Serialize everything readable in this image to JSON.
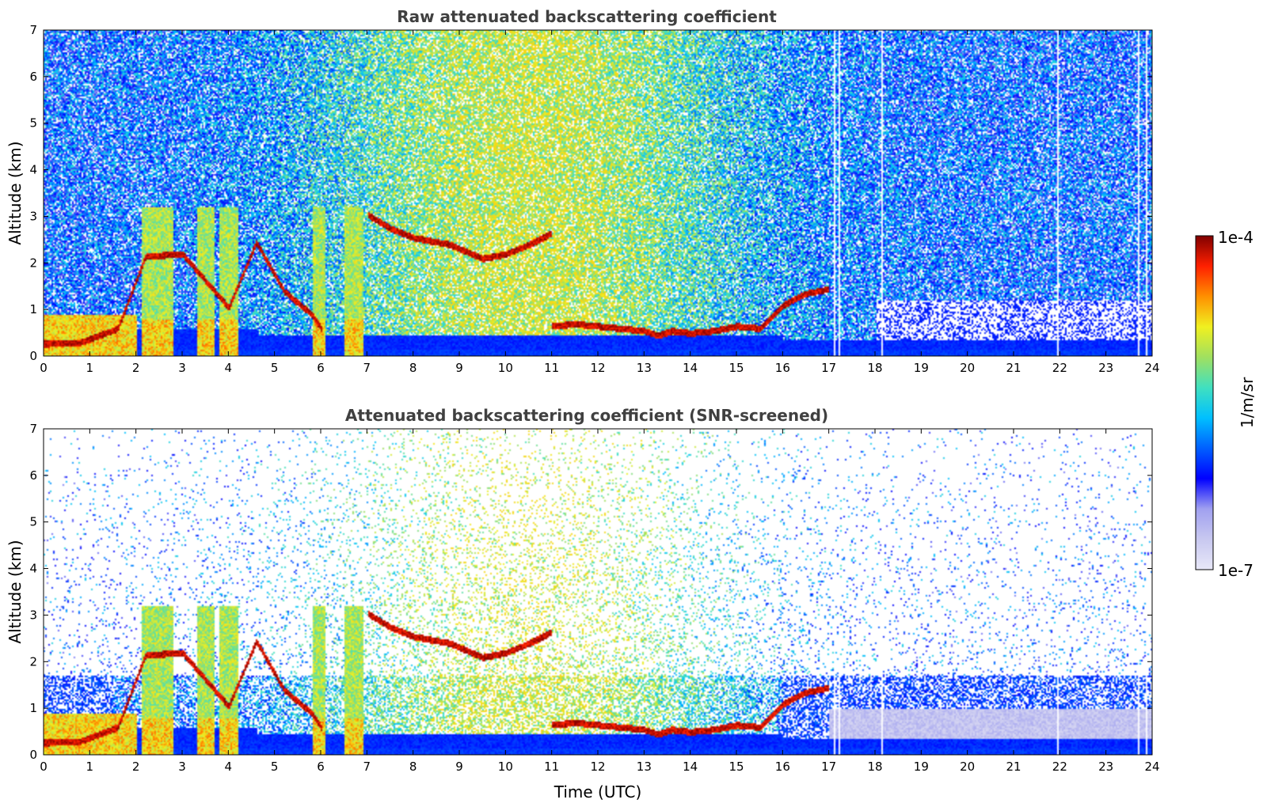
{
  "chart_data": [
    {
      "type": "heatmap",
      "title": "Raw attenuated backscattering coefficient",
      "xlabel": "",
      "ylabel": "Altitude (km)",
      "xlim": [
        0,
        24
      ],
      "ylim": [
        0,
        7
      ],
      "xticks": [
        "0",
        "1",
        "2",
        "3",
        "4",
        "5",
        "6",
        "7",
        "8",
        "9",
        "10",
        "11",
        "12",
        "13",
        "14",
        "15",
        "16",
        "17",
        "18",
        "19",
        "20",
        "21",
        "22",
        "23",
        "24"
      ],
      "yticks": [
        "0",
        "1",
        "2",
        "3",
        "4",
        "5",
        "6",
        "7"
      ],
      "grid": false
    },
    {
      "type": "heatmap",
      "title": "Attenuated backscattering coefficient (SNR-screened)",
      "xlabel": "Time (UTC)",
      "ylabel": "Altitude (km)",
      "xlim": [
        0,
        24
      ],
      "ylim": [
        0,
        7
      ],
      "xticks": [
        "0",
        "1",
        "2",
        "3",
        "4",
        "5",
        "6",
        "7",
        "8",
        "9",
        "10",
        "11",
        "12",
        "13",
        "14",
        "15",
        "16",
        "17",
        "18",
        "19",
        "20",
        "21",
        "22",
        "23",
        "24"
      ],
      "yticks": [
        "0",
        "1",
        "2",
        "3",
        "4",
        "5",
        "6",
        "7"
      ],
      "grid": false
    }
  ],
  "colorbar": {
    "label": "1/m/sr",
    "max_label": "1e-4",
    "min_label": "1e-7",
    "scale": "log",
    "colormap": "jet",
    "colors": [
      "#e8e8f8",
      "#c8c8f0",
      "#a0a0f0",
      "#0000ff",
      "#0060ff",
      "#00c0ff",
      "#40e0c0",
      "#a0e060",
      "#f0f020",
      "#ff9000",
      "#ff2000",
      "#800000"
    ]
  },
  "features": {
    "cloud_layer_km": [
      [
        0.0,
        0.27
      ],
      [
        0.8,
        0.3
      ],
      [
        1.6,
        0.6
      ],
      [
        2.2,
        2.15
      ],
      [
        3.0,
        2.2
      ],
      [
        4.0,
        1.05
      ],
      [
        4.6,
        2.45
      ],
      [
        5.2,
        1.4
      ],
      [
        5.8,
        0.9
      ],
      [
        6.0,
        0.6
      ]
    ],
    "cloud_layer2_km": [
      [
        7.0,
        3.05
      ],
      [
        7.5,
        2.75
      ],
      [
        8.0,
        2.55
      ],
      [
        8.8,
        2.4
      ],
      [
        9.5,
        2.1
      ],
      [
        10.0,
        2.2
      ],
      [
        10.5,
        2.4
      ],
      [
        11.0,
        2.65
      ]
    ],
    "low_layer_km": [
      [
        11.0,
        0.65
      ],
      [
        11.5,
        0.7
      ],
      [
        12.0,
        0.65
      ],
      [
        12.5,
        0.6
      ],
      [
        13.0,
        0.55
      ],
      [
        13.3,
        0.45
      ],
      [
        13.6,
        0.55
      ],
      [
        14.0,
        0.5
      ],
      [
        14.5,
        0.55
      ],
      [
        15.0,
        0.65
      ],
      [
        15.5,
        0.6
      ],
      [
        16.0,
        1.1
      ],
      [
        16.5,
        1.35
      ],
      [
        17.0,
        1.45
      ]
    ],
    "aerosol_plumes_utc": [
      [
        2.1,
        2.4
      ],
      [
        2.4,
        2.8
      ],
      [
        3.3,
        3.7
      ],
      [
        3.8,
        4.2
      ],
      [
        5.8,
        6.1
      ],
      [
        6.5,
        6.9
      ]
    ],
    "missing_data_utc": [
      17.1,
      17.2,
      18.15,
      21.95,
      23.7,
      23.85
    ]
  }
}
